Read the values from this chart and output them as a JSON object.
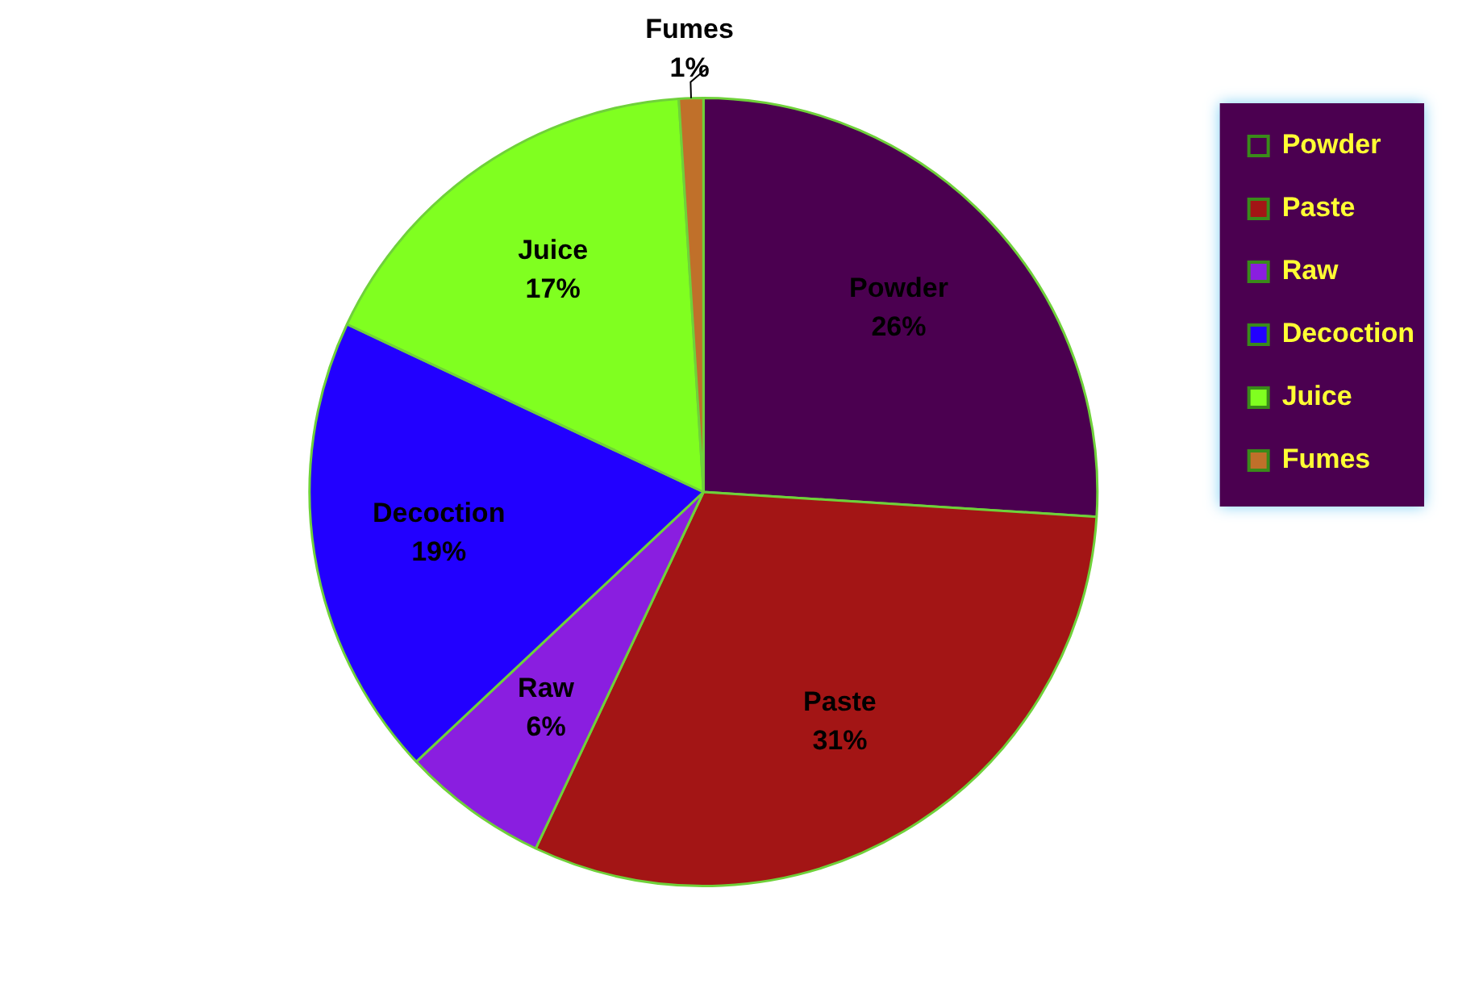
{
  "chart_data": {
    "type": "pie",
    "categories": [
      "Powder",
      "Paste",
      "Raw",
      "Decoction",
      "Juice",
      "Fumes"
    ],
    "values": [
      26,
      31,
      6,
      19,
      17,
      1
    ],
    "colors": [
      "#4b0050",
      "#a31515",
      "#8a1ee0",
      "#2200ff",
      "#80ff20",
      "#c0702a"
    ],
    "value_labels": [
      "26%",
      "31%",
      "6%",
      "19%",
      "17%",
      "1%"
    ],
    "legend": "top right"
  }
}
